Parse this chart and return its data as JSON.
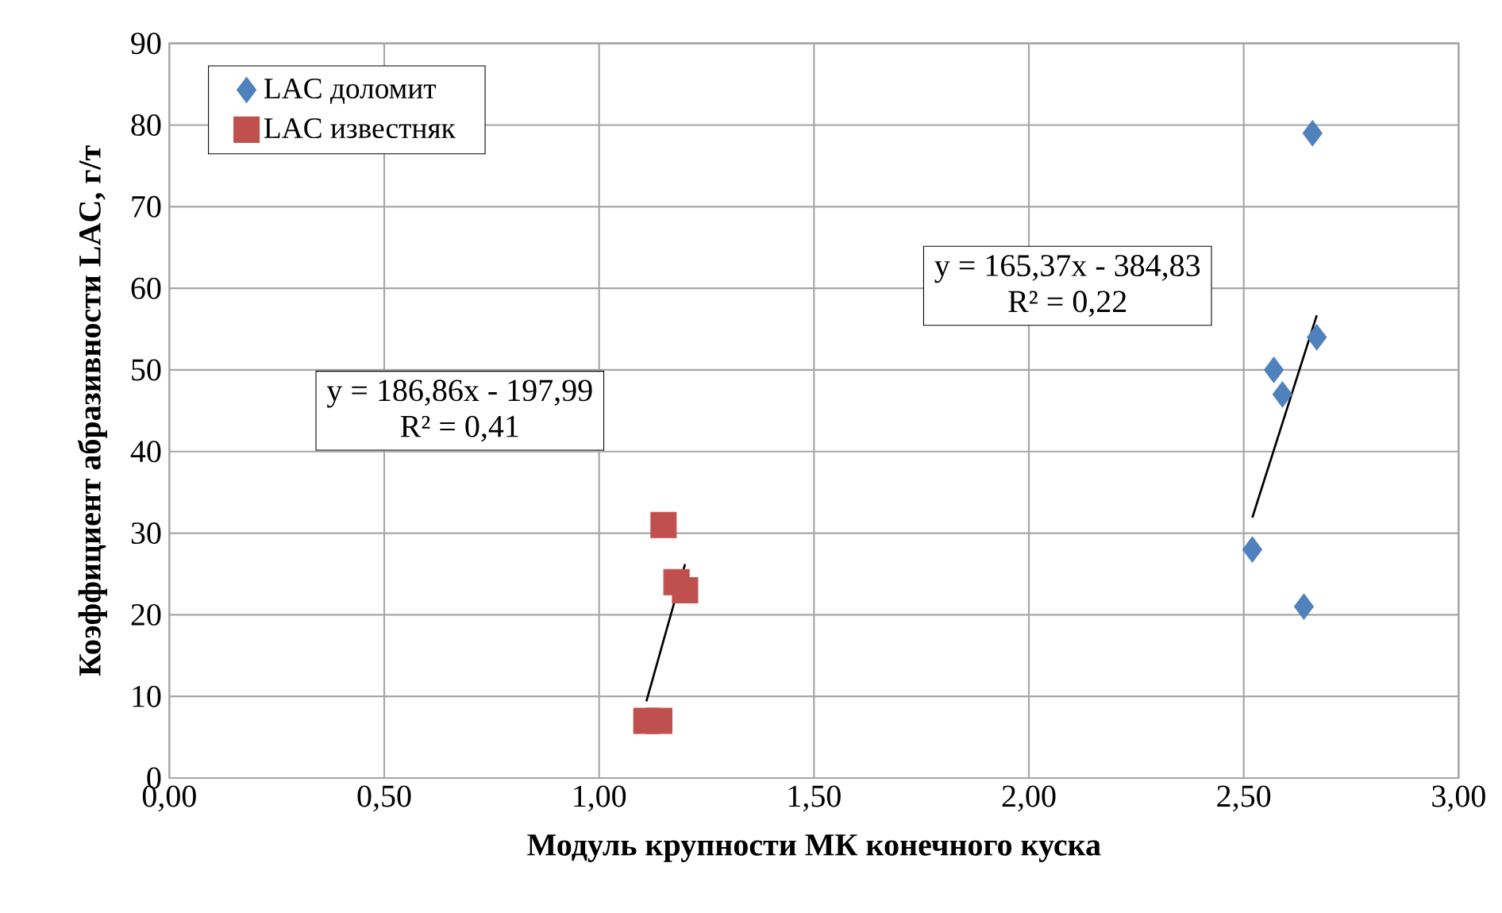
{
  "chart_data": {
    "type": "scatter",
    "xlabel": "Модуль крупности МК конечного куска",
    "ylabel": "Коэффициент абразивности LAC, г/т",
    "series": [
      {
        "name": "LAC доломит",
        "color": "#4f81bd",
        "marker": "diamond",
        "x": [
          2.52,
          2.57,
          2.59,
          2.67,
          2.66,
          2.64
        ],
        "values": [
          28,
          50,
          47,
          54,
          79,
          21
        ]
      },
      {
        "name": "LAC известняк",
        "color": "#c0504d",
        "marker": "square",
        "x": [
          1.15,
          1.18,
          1.2,
          1.11,
          1.14
        ],
        "values": [
          31,
          24,
          23,
          7,
          7
        ]
      },
      {
        "type": "line",
        "color": "#000000",
        "marker": "none",
        "x": [
          2.52,
          2.67
        ],
        "values": [
          31.9,
          56.7
        ]
      },
      {
        "type": "line",
        "color": "#000000",
        "marker": "none",
        "x": [
          1.11,
          1.2
        ],
        "values": [
          9.4,
          26.2
        ]
      }
    ],
    "annotations": [
      "y = 186,86x - 197,99",
      "R² = 0,41",
      "y = 165,37x - 384,83",
      "R² = 0,22"
    ],
    "xlim": [
      0,
      3
    ],
    "ylim": [
      0,
      90
    ],
    "xticks": [
      {
        "value": 0,
        "label": "0,00"
      },
      {
        "value": 0.5,
        "label": "0,50"
      },
      {
        "value": 1,
        "label": "1,00"
      },
      {
        "value": 1.5,
        "label": "1,50"
      },
      {
        "value": 2,
        "label": "2,00"
      },
      {
        "value": 2.5,
        "label": "2,50"
      },
      {
        "value": 3,
        "label": "3,00"
      }
    ],
    "yticks": [
      0,
      10,
      20,
      30,
      40,
      50,
      60,
      70,
      80,
      90
    ],
    "grid": true,
    "legend": "top left"
  }
}
